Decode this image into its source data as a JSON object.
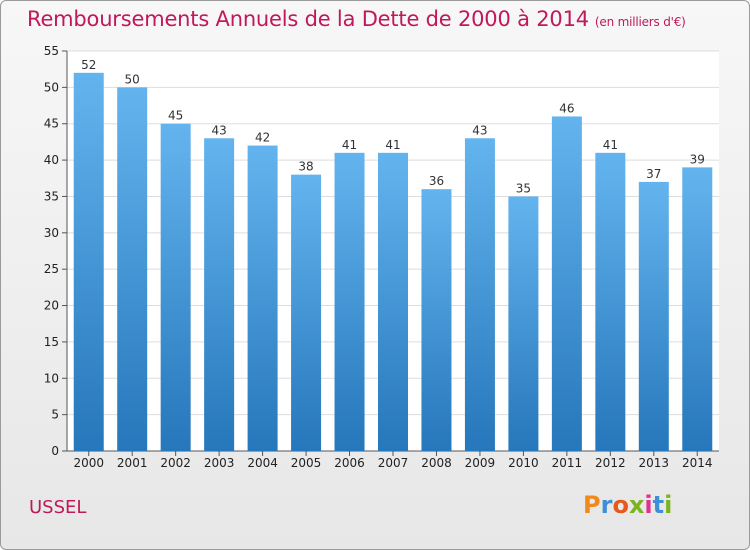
{
  "header": {
    "title": "Remboursements Annuels de la Dette de 2000 à 2014",
    "unit": "(en milliers d'€)"
  },
  "footer": {
    "city": "USSEL",
    "logo": "Proxiti"
  },
  "colors": {
    "title": "#c0185a",
    "bar_top": "#63b4ee",
    "bar_bottom": "#2677bb",
    "logo_letters": [
      "#f08a1c",
      "#3d8fd6",
      "#e8581c",
      "#7ab51d",
      "#e2318d",
      "#3d8fd6",
      "#7ab51d"
    ]
  },
  "chart_data": {
    "type": "bar",
    "title": "Remboursements Annuels de la Dette de 2000 à 2014",
    "categories": [
      "2000",
      "2001",
      "2002",
      "2003",
      "2004",
      "2005",
      "2006",
      "2007",
      "2008",
      "2009",
      "2010",
      "2011",
      "2012",
      "2013",
      "2014"
    ],
    "values": [
      52,
      50,
      45,
      43,
      42,
      38,
      41,
      41,
      36,
      43,
      35,
      46,
      41,
      37,
      39
    ],
    "ylim": [
      0,
      55
    ],
    "yticks": [
      0,
      5,
      10,
      15,
      20,
      25,
      30,
      35,
      40,
      45,
      50,
      55
    ],
    "grid": true
  }
}
